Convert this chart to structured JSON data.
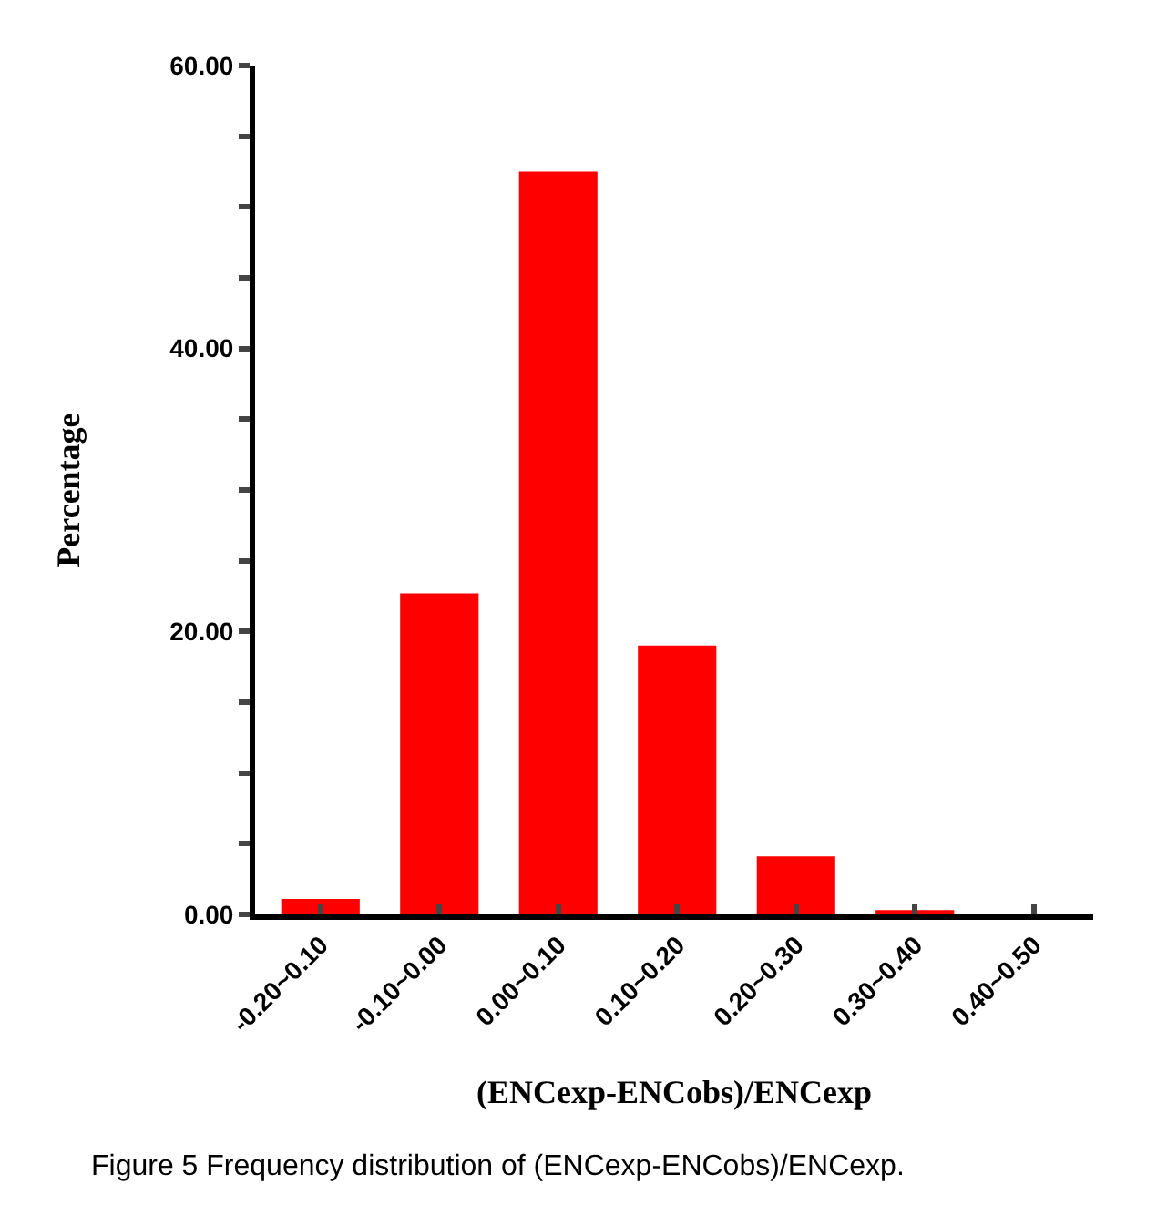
{
  "chart_data": {
    "type": "bar",
    "categories": [
      "-0.20~0.10",
      "-0.10~0.00",
      "0.00~0.10",
      "0.10~0.20",
      "0.20~0.30",
      "0.30~0.40",
      "0.40~0.50"
    ],
    "values": [
      1.1,
      22.7,
      52.5,
      19.0,
      4.1,
      0.3,
      0.0
    ],
    "color": "#ff0000",
    "xlabel": "(ENCexp-ENCobs)/ENCexp",
    "ylabel": "Percentage",
    "ylim": [
      0,
      60
    ],
    "yticks": [
      {
        "value": 0,
        "label": "0.00"
      },
      {
        "value": 5,
        "label": null
      },
      {
        "value": 10,
        "label": null
      },
      {
        "value": 15,
        "label": null
      },
      {
        "value": 20,
        "label": "20.00"
      },
      {
        "value": 25,
        "label": null
      },
      {
        "value": 30,
        "label": null
      },
      {
        "value": 35,
        "label": null
      },
      {
        "value": 40,
        "label": "40.00"
      },
      {
        "value": 45,
        "label": null
      },
      {
        "value": 50,
        "label": null
      },
      {
        "value": 55,
        "label": null
      },
      {
        "value": 60,
        "label": "60.00"
      }
    ],
    "annotations": [
      "Figure 5 Frequency distribution of (ENCexp-ENCobs)/ENCexp."
    ]
  }
}
